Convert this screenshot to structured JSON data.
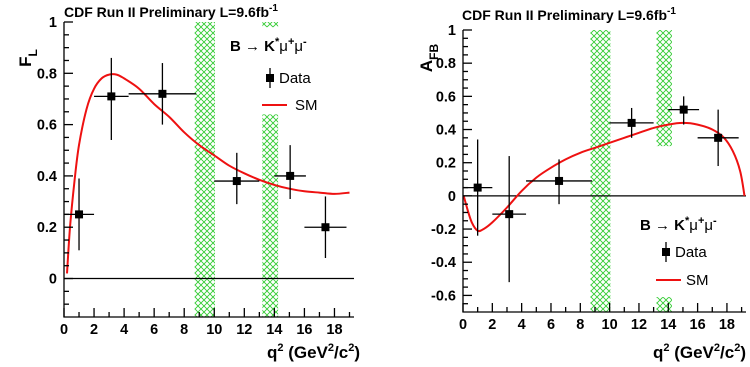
{
  "chart_data": [
    {
      "type": "scatter",
      "id": "fl",
      "title": "CDF Run II Preliminary L=9.6fb",
      "title_superscript": "-1",
      "xlabel": "q",
      "xlabel_superscript": "2",
      "xlabel_unit_a": " (GeV",
      "xlabel_unit_sup": "2",
      "xlabel_unit_b": "/c",
      "xlabel_unit_sup2": "2",
      "xlabel_unit_c": ")",
      "ylabel": "F",
      "ylabel_subscript": "L",
      "xlim": [
        0,
        19.3
      ],
      "ylim": [
        -0.15,
        1.0
      ],
      "xticks": [
        0,
        2,
        4,
        6,
        8,
        10,
        12,
        14,
        16,
        18
      ],
      "yticks": [
        0,
        0.2,
        0.4,
        0.6,
        0.8,
        1
      ],
      "ytick_labels": [
        "0",
        "0.2",
        "0.4",
        "0.6",
        "0.8",
        "1"
      ],
      "zero_line": true,
      "legend": {
        "process": "B → K",
        "process_sup": "*",
        "process_tail": "μ",
        "process_tail_sup": "+",
        "process_tail2": "μ",
        "process_tail2_sup": "-",
        "data_label": "Data",
        "sm_label": "SM",
        "placement": "top-right"
      },
      "series": [
        {
          "name": "Data",
          "points": [
            {
              "x": 1.0,
              "y": 0.25,
              "xerr": [
                1.0,
                1.0
              ],
              "yerr": [
                0.14,
                0.14
              ]
            },
            {
              "x": 3.15,
              "y": 0.71,
              "xerr": [
                1.15,
                1.15
              ],
              "yerr": [
                0.17,
                0.15
              ]
            },
            {
              "x": 6.55,
              "y": 0.72,
              "xerr": [
                2.25,
                2.25
              ],
              "yerr": [
                0.12,
                0.12
              ]
            },
            {
              "x": 11.5,
              "y": 0.38,
              "xerr": [
                1.5,
                1.5
              ],
              "yerr": [
                0.09,
                0.11
              ]
            },
            {
              "x": 15.05,
              "y": 0.4,
              "xerr": [
                1.05,
                1.05
              ],
              "yerr": [
                0.09,
                0.12
              ]
            },
            {
              "x": 17.4,
              "y": 0.2,
              "xerr": [
                1.4,
                1.4
              ],
              "yerr": [
                0.12,
                0.12
              ]
            }
          ]
        },
        {
          "name": "SM",
          "curve": [
            [
              0.2,
              0.02
            ],
            [
              0.4,
              0.2
            ],
            [
              0.7,
              0.38
            ],
            [
              1.0,
              0.52
            ],
            [
              1.5,
              0.66
            ],
            [
              2.0,
              0.74
            ],
            [
              2.5,
              0.78
            ],
            [
              3.0,
              0.795
            ],
            [
              3.5,
              0.795
            ],
            [
              4.0,
              0.78
            ],
            [
              5.0,
              0.74
            ],
            [
              6.0,
              0.68
            ],
            [
              7.0,
              0.63
            ],
            [
              8.0,
              0.57
            ],
            [
              9.0,
              0.52
            ],
            [
              10.0,
              0.48
            ],
            [
              11.0,
              0.44
            ],
            [
              12.0,
              0.41
            ],
            [
              13.0,
              0.385
            ],
            [
              14.0,
              0.365
            ],
            [
              15.0,
              0.35
            ],
            [
              16.0,
              0.34
            ],
            [
              17.0,
              0.335
            ],
            [
              18.0,
              0.33
            ],
            [
              19.0,
              0.335
            ]
          ]
        }
      ],
      "veto_bands": [
        {
          "x": [
            8.7,
            10.05
          ],
          "y": [
            -0.15,
            1.0
          ]
        },
        {
          "x": [
            13.2,
            14.25
          ],
          "y": [
            -0.15,
            0.64
          ]
        },
        {
          "x": [
            13.2,
            14.25
          ],
          "y": [
            0.98,
            1.0
          ]
        }
      ]
    },
    {
      "type": "scatter",
      "id": "afb",
      "title": "CDF Run II Preliminary L=9.6fb",
      "title_superscript": "-1",
      "xlabel": "q",
      "xlabel_superscript": "2",
      "xlabel_unit_a": " (GeV",
      "xlabel_unit_sup": "2",
      "xlabel_unit_b": "/c",
      "xlabel_unit_sup2": "2",
      "xlabel_unit_c": ")",
      "ylabel": "A",
      "ylabel_subscript": "FB",
      "xlim": [
        0,
        19.3
      ],
      "ylim": [
        -0.7,
        1.0
      ],
      "xticks": [
        0,
        2,
        4,
        6,
        8,
        10,
        12,
        14,
        16,
        18
      ],
      "yticks": [
        -0.6,
        -0.4,
        -0.2,
        0,
        0.2,
        0.4,
        0.6,
        0.8,
        1
      ],
      "ytick_labels": [
        "-0.6",
        "-0.4",
        "-0.2",
        "0",
        "0.2",
        "0.4",
        "0.6",
        "0.8",
        "1"
      ],
      "zero_line": true,
      "legend": {
        "process": "B → K",
        "process_sup": "*",
        "process_tail": "μ",
        "process_tail_sup": "+",
        "process_tail2": "μ",
        "process_tail2_sup": "-",
        "data_label": "Data",
        "sm_label": "SM",
        "placement": "bottom-right"
      },
      "series": [
        {
          "name": "Data",
          "points": [
            {
              "x": 1.0,
              "y": 0.05,
              "xerr": [
                1.0,
                1.0
              ],
              "yerr": [
                0.29,
                0.29
              ]
            },
            {
              "x": 3.15,
              "y": -0.11,
              "xerr": [
                1.15,
                1.15
              ],
              "yerr": [
                0.41,
                0.35
              ]
            },
            {
              "x": 6.55,
              "y": 0.09,
              "xerr": [
                2.25,
                2.25
              ],
              "yerr": [
                0.14,
                0.13
              ]
            },
            {
              "x": 11.5,
              "y": 0.44,
              "xerr": [
                1.5,
                1.5
              ],
              "yerr": [
                0.09,
                0.09
              ]
            },
            {
              "x": 15.05,
              "y": 0.52,
              "xerr": [
                1.05,
                1.05
              ],
              "yerr": [
                0.09,
                0.08
              ]
            },
            {
              "x": 17.4,
              "y": 0.35,
              "xerr": [
                1.4,
                1.4
              ],
              "yerr": [
                0.17,
                0.17
              ]
            }
          ]
        },
        {
          "name": "SM",
          "curve": [
            [
              0.05,
              0.0
            ],
            [
              0.3,
              -0.08
            ],
            [
              0.6,
              -0.16
            ],
            [
              1.0,
              -0.21
            ],
            [
              1.4,
              -0.2
            ],
            [
              2.0,
              -0.16
            ],
            [
              3.0,
              -0.07
            ],
            [
              4.0,
              0.03
            ],
            [
              5.0,
              0.11
            ],
            [
              6.0,
              0.17
            ],
            [
              7.0,
              0.22
            ],
            [
              8.0,
              0.26
            ],
            [
              9.0,
              0.29
            ],
            [
              10.0,
              0.32
            ],
            [
              11.0,
              0.35
            ],
            [
              12.0,
              0.38
            ],
            [
              13.0,
              0.41
            ],
            [
              14.0,
              0.43
            ],
            [
              15.0,
              0.44
            ],
            [
              16.0,
              0.43
            ],
            [
              17.0,
              0.4
            ],
            [
              17.8,
              0.35
            ],
            [
              18.4,
              0.27
            ],
            [
              18.9,
              0.15
            ],
            [
              19.2,
              0.0
            ]
          ]
        }
      ],
      "veto_bands": [
        {
          "x": [
            8.7,
            10.05
          ],
          "y": [
            -0.7,
            1.0
          ]
        },
        {
          "x": [
            13.2,
            14.25
          ],
          "y": [
            0.3,
            1.0
          ]
        },
        {
          "x": [
            13.2,
            14.25
          ],
          "y": [
            -0.7,
            -0.61
          ]
        }
      ]
    }
  ]
}
